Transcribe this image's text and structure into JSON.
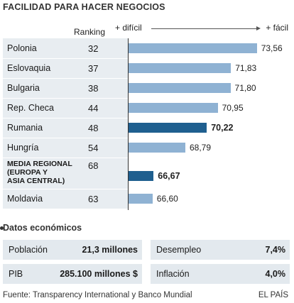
{
  "title": "FACILIDAD PARA HACER NEGOCIOS",
  "header": {
    "rank_label": "Ranking",
    "left_label": "+ difícil",
    "right_label": "+ fácil"
  },
  "colors": {
    "normal_bar": "#8fb2d3",
    "highlight_bar": "#1f5f8f",
    "row_bg": "#e8edf1",
    "card_bg": "#e3e9ee"
  },
  "chart_data": {
    "type": "bar",
    "orientation": "horizontal",
    "title": "FACILIDAD PARA HACER NEGOCIOS",
    "xlim": [
      65,
      74
    ],
    "rows": [
      {
        "name": "Polonia",
        "rank": "32",
        "value": 73.56,
        "label": "73,56",
        "highlight": false
      },
      {
        "name": "Eslovaquia",
        "rank": "37",
        "value": 71.83,
        "label": "71,83",
        "highlight": false
      },
      {
        "name": "Bulgaria",
        "rank": "38",
        "value": 71.8,
        "label": "71,80",
        "highlight": false
      },
      {
        "name": "Rep. Checa",
        "rank": "44",
        "value": 70.95,
        "label": "70,95",
        "highlight": false
      },
      {
        "name": "Rumania",
        "rank": "48",
        "value": 70.22,
        "label": "70,22",
        "highlight": true
      },
      {
        "name": "Hungría",
        "rank": "54",
        "value": 68.79,
        "label": "68,79",
        "highlight": false
      },
      {
        "name": "MEDIA REGIONAL\n(EUROPA Y\nASIA CENTRAL)",
        "rank": "68",
        "value": 66.67,
        "label": "66,67",
        "highlight": true
      },
      {
        "name": "Moldavia",
        "rank": "63",
        "value": 66.6,
        "label": "66,60",
        "highlight": false
      }
    ]
  },
  "economic": {
    "title": "Datos económicos",
    "items": [
      {
        "label": "Población",
        "value": "21,3 millones"
      },
      {
        "label": "Desempleo",
        "value": "7,4%"
      },
      {
        "label": "PIB",
        "value": "285.100 millones $"
      },
      {
        "label": "Inflación",
        "value": "4,0%"
      }
    ]
  },
  "footer": {
    "source": "Fuente: Transparency International y Banco Mundial",
    "credit": "EL PAÍS"
  }
}
